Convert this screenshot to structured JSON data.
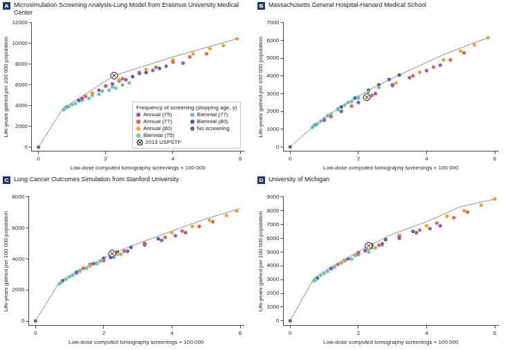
{
  "chart_data": [
    {
      "type": "scatter",
      "panel": "A",
      "title": "Microsimulation Screening Analysis-Lung Model from Erasmus University Medical Center",
      "x_label": "Low-dose computed tomography screenings × 100 000",
      "y_label": "Life-years gained per 100 000 population",
      "xlim": [
        -0.2,
        6.1
      ],
      "xticks": [
        0,
        2,
        4,
        6
      ],
      "ylim": [
        -400,
        12000
      ],
      "yticks": [
        0,
        2000,
        4000,
        6000,
        8000,
        10000,
        12000
      ],
      "grid": false,
      "legend": "lower right",
      "legend_title": "Frequency of screening (stopping age, y)",
      "series": [
        {
          "type": "line",
          "color": "#8c8c8c",
          "x": [
            0,
            0.7,
            1.0,
            2.25,
            4.0,
            5.9
          ],
          "values": [
            0,
            3600,
            4300,
            6900,
            8700,
            10450
          ]
        },
        {
          "name": "Annual (75)",
          "color": "#8e5bb5",
          "marker": "circle",
          "x": [
            1.3,
            1.8,
            2.2,
            2.6,
            3.0,
            3.4,
            3.8,
            4.3
          ],
          "values": [
            4700,
            5500,
            6100,
            6500,
            7100,
            7400,
            7800,
            8100
          ]
        },
        {
          "name": "Annual (77)",
          "color": "#e8604c",
          "marker": "circle",
          "x": [
            1.4,
            2.0,
            2.5,
            3.0,
            3.5,
            4.0,
            4.5,
            5.0
          ],
          "values": [
            4900,
            5900,
            6600,
            7200,
            7700,
            8200,
            8700,
            9000
          ]
        },
        {
          "name": "Annual (80)",
          "color": "#f0a030",
          "marker": "circle",
          "x": [
            1.6,
            2.4,
            3.2,
            4.0,
            4.6,
            5.1,
            5.5,
            5.9
          ],
          "values": [
            5200,
            6500,
            7500,
            8400,
            9000,
            9500,
            9800,
            10450
          ]
        },
        {
          "name": "Biennial (75)",
          "color": "#5fc8c0",
          "marker": "circle",
          "x": [
            0.75,
            0.9,
            1.1,
            1.3,
            1.5,
            1.8,
            2.1,
            2.3
          ],
          "values": [
            3600,
            3900,
            4200,
            4500,
            4700,
            5100,
            5500,
            5700
          ]
        },
        {
          "name": "Biennial (77)",
          "color": "#86b89c",
          "marker": "circle",
          "x": [
            0.8,
            1.0,
            1.3,
            1.6,
            1.9,
            2.2,
            2.5,
            2.7
          ],
          "values": [
            3800,
            4100,
            4600,
            5000,
            5400,
            5800,
            6000,
            6200
          ]
        },
        {
          "name": "Biennial (80)",
          "color": "#4a5ea8",
          "marker": "circle",
          "x": [
            0.85,
            1.2,
            1.6,
            2.0,
            2.4,
            2.8,
            3.2,
            3.6
          ],
          "values": [
            3900,
            4500,
            5200,
            5900,
            6400,
            6800,
            7200,
            7600
          ]
        },
        {
          "name": "No screening",
          "color": "#666666",
          "marker": "circle",
          "x": [
            0
          ],
          "values": [
            0
          ]
        },
        {
          "name": "2013 USPSTF",
          "color": "#000000",
          "marker": "circle_x",
          "x": [
            2.25
          ],
          "values": [
            6900
          ]
        }
      ]
    },
    {
      "type": "scatter",
      "panel": "B",
      "title": "Massachusetts General Hospital-Harvard Medical School",
      "x_label": "Low-dose computed tomography screenings × 100 000",
      "y_label": "Life-years gained per 100 000 population",
      "xlim": [
        -0.2,
        6.1
      ],
      "xticks": [
        0,
        2,
        4,
        6
      ],
      "ylim": [
        -250,
        7000
      ],
      "yticks": [
        0,
        1000,
        2000,
        3000,
        4000,
        5000,
        6000,
        7000
      ],
      "grid": false,
      "series": [
        {
          "type": "line",
          "color": "#8c8c8c",
          "x": [
            0,
            0.65,
            1.5,
            2.5,
            3.2,
            4.5,
            5.3,
            5.8
          ],
          "values": [
            0,
            1100,
            2300,
            3400,
            4050,
            5200,
            5800,
            6150
          ]
        },
        {
          "color": "#8e5bb5",
          "marker": "circle",
          "x": [
            1.0,
            1.5,
            2.0,
            2.5,
            3.0,
            3.5,
            4.0,
            4.4
          ],
          "values": [
            1500,
            2000,
            2500,
            3000,
            3500,
            3900,
            4300,
            4600
          ]
        },
        {
          "color": "#e8604c",
          "marker": "circle",
          "x": [
            1.2,
            1.8,
            2.4,
            3.0,
            3.6,
            4.2,
            4.7,
            5.1
          ],
          "values": [
            1700,
            2300,
            2900,
            3450,
            4000,
            4500,
            4900,
            5300
          ]
        },
        {
          "color": "#f0a030",
          "marker": "circle",
          "x": [
            1.5,
            2.3,
            3.1,
            3.8,
            4.5,
            5.0,
            5.4,
            5.8
          ],
          "values": [
            2000,
            2800,
            3600,
            4200,
            4900,
            5400,
            5750,
            6150
          ]
        },
        {
          "color": "#5fc8c0",
          "marker": "circle",
          "x": [
            0.65,
            0.8,
            1.0,
            1.2,
            1.4,
            1.6,
            1.8,
            2.0
          ],
          "values": [
            1100,
            1300,
            1600,
            1850,
            2100,
            2350,
            2550,
            2750
          ]
        },
        {
          "color": "#86b89c",
          "marker": "circle",
          "x": [
            0.7,
            0.9,
            1.1,
            1.4,
            1.7,
            2.0,
            2.3,
            2.6
          ],
          "values": [
            1200,
            1450,
            1750,
            2150,
            2500,
            2800,
            3100,
            3350
          ]
        },
        {
          "color": "#4a5ea8",
          "marker": "circle",
          "x": [
            0.75,
            1.1,
            1.5,
            1.9,
            2.3,
            2.6,
            2.9,
            3.2
          ],
          "values": [
            1250,
            1750,
            2250,
            2750,
            3200,
            3500,
            3800,
            4050
          ]
        },
        {
          "color": "#666666",
          "marker": "circle",
          "x": [
            0
          ],
          "values": [
            0
          ]
        },
        {
          "color": "#000000",
          "marker": "circle_x",
          "x": [
            2.25
          ],
          "values": [
            2800
          ]
        }
      ]
    },
    {
      "type": "scatter",
      "panel": "C",
      "title": "Lung Cancer Outcomes Simulation from Stanford University",
      "x_label": "Low-dose computed tomography screenings × 100 000",
      "y_label": "Life-years gained per 100 000 population",
      "xlim": [
        -0.2,
        6.1
      ],
      "xticks": [
        0,
        2,
        4,
        6
      ],
      "ylim": [
        -300,
        8000
      ],
      "yticks": [
        0,
        2000,
        4000,
        6000,
        8000
      ],
      "grid": false,
      "series": [
        {
          "type": "line",
          "color": "#8c8c8c",
          "x": [
            0,
            0.7,
            1.0,
            2.25,
            3.0,
            4.0,
            5.0,
            6.0
          ],
          "values": [
            0,
            2500,
            2950,
            4350,
            5000,
            5800,
            6600,
            7250
          ]
        },
        {
          "color": "#8e5bb5",
          "marker": "circle",
          "x": [
            1.2,
            1.7,
            2.2,
            2.7,
            3.2,
            3.7,
            4.1,
            4.4
          ],
          "values": [
            3100,
            3700,
            4100,
            4500,
            4900,
            5200,
            5500,
            5700
          ]
        },
        {
          "color": "#e8604c",
          "marker": "circle",
          "x": [
            1.4,
            2.0,
            2.6,
            3.2,
            3.8,
            4.3,
            4.8,
            5.2
          ],
          "values": [
            3400,
            3900,
            4500,
            5000,
            5400,
            5800,
            6100,
            6400
          ]
        },
        {
          "color": "#f0a030",
          "marker": "circle",
          "x": [
            1.6,
            2.4,
            3.2,
            4.0,
            4.6,
            5.1,
            5.6,
            5.9
          ],
          "values": [
            3600,
            4300,
            5000,
            5700,
            6100,
            6500,
            6800,
            7100
          ]
        },
        {
          "color": "#5fc8c0",
          "marker": "circle",
          "x": [
            0.7,
            0.9,
            1.1,
            1.3,
            1.5,
            1.8,
            2.0,
            2.3
          ],
          "values": [
            2400,
            2700,
            2950,
            3200,
            3400,
            3700,
            3900,
            4100
          ]
        },
        {
          "color": "#86b89c",
          "marker": "circle",
          "x": [
            0.75,
            1.0,
            1.3,
            1.6,
            1.9,
            2.2,
            2.5,
            2.7
          ],
          "values": [
            2500,
            2850,
            3250,
            3550,
            3850,
            4100,
            4300,
            4500
          ]
        },
        {
          "color": "#4a5ea8",
          "marker": "circle",
          "x": [
            0.8,
            1.2,
            1.6,
            2.0,
            2.4,
            2.8,
            3.2,
            3.6
          ],
          "values": [
            2600,
            3150,
            3650,
            4050,
            4450,
            4750,
            5000,
            5300
          ]
        },
        {
          "color": "#666666",
          "marker": "circle",
          "x": [
            0
          ],
          "values": [
            0
          ]
        },
        {
          "color": "#000000",
          "marker": "circle_x",
          "x": [
            2.25
          ],
          "values": [
            4350
          ]
        }
      ]
    },
    {
      "type": "scatter",
      "panel": "D",
      "title": "University of Michigan",
      "x_label": "Low-dose computed tomography screenings × 100 000",
      "y_label": "Life-years gained per 100 000 population",
      "xlim": [
        -0.2,
        6.1
      ],
      "xticks": [
        0,
        2,
        4,
        6
      ],
      "ylim": [
        -350,
        9000
      ],
      "yticks": [
        0,
        1000,
        2000,
        3000,
        4000,
        5000,
        6000,
        7000,
        8000,
        9000
      ],
      "grid": false,
      "series": [
        {
          "type": "line",
          "color": "#8c8c8c",
          "x": [
            0,
            0.7,
            1.0,
            2.3,
            3.0,
            4.0,
            5.0,
            6.0
          ],
          "values": [
            0,
            3100,
            3600,
            5450,
            6300,
            7200,
            8300,
            8850
          ]
        },
        {
          "color": "#8e5bb5",
          "marker": "circle",
          "x": [
            1.2,
            1.7,
            2.2,
            2.7,
            3.2,
            3.7,
            4.1,
            4.4
          ],
          "values": [
            3800,
            4500,
            5100,
            5600,
            6000,
            6400,
            6700,
            6900
          ]
        },
        {
          "color": "#e8604c",
          "marker": "circle",
          "x": [
            1.4,
            2.0,
            2.6,
            3.2,
            3.8,
            4.3,
            4.8,
            5.2
          ],
          "values": [
            4100,
            4900,
            5500,
            6100,
            6600,
            7100,
            7500,
            7900
          ]
        },
        {
          "color": "#f0a030",
          "marker": "circle",
          "x": [
            1.6,
            2.4,
            3.2,
            4.0,
            4.6,
            5.1,
            5.6,
            6.0
          ],
          "values": [
            4400,
            5300,
            6200,
            6900,
            7600,
            8000,
            8400,
            8850
          ]
        },
        {
          "color": "#5fc8c0",
          "marker": "circle",
          "x": [
            0.7,
            0.9,
            1.1,
            1.3,
            1.5,
            1.8,
            2.0,
            2.3
          ],
          "values": [
            2900,
            3300,
            3600,
            3900,
            4200,
            4500,
            4800,
            5000
          ]
        },
        {
          "color": "#86b89c",
          "marker": "circle",
          "x": [
            0.75,
            1.0,
            1.3,
            1.6,
            1.9,
            2.2,
            2.5,
            2.7
          ],
          "values": [
            3000,
            3450,
            3950,
            4350,
            4750,
            5100,
            5300,
            5500
          ]
        },
        {
          "color": "#4a5ea8",
          "marker": "circle",
          "x": [
            0.8,
            1.2,
            1.6,
            2.0,
            2.4,
            2.8,
            3.2,
            3.6
          ],
          "values": [
            3100,
            3800,
            4400,
            4950,
            5500,
            5900,
            6200,
            6500
          ]
        },
        {
          "color": "#666666",
          "marker": "circle",
          "x": [
            0
          ],
          "values": [
            0
          ]
        },
        {
          "color": "#000000",
          "marker": "circle_x",
          "x": [
            2.3
          ],
          "values": [
            5450
          ]
        }
      ]
    }
  ]
}
